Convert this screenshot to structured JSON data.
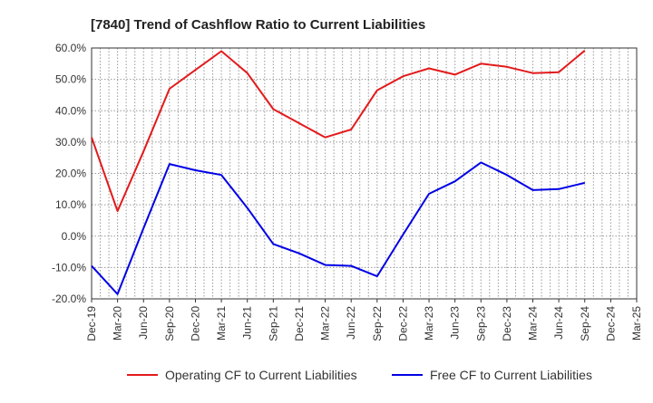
{
  "chart_data": {
    "type": "line",
    "title": "[7840]  Trend of Cashflow Ratio to Current Liabilities",
    "xlabel": "",
    "ylabel": "",
    "ylim": [
      -20,
      60
    ],
    "y_ticks": [
      -20,
      -10,
      0,
      10,
      20,
      30,
      40,
      50,
      60
    ],
    "y_tick_format": "{v}.0%",
    "grid": true,
    "legend_position": "bottom",
    "categories": [
      "Dec-19",
      "Mar-20",
      "Jun-20",
      "Sep-20",
      "Dec-20",
      "Mar-21",
      "Jun-21",
      "Sep-21",
      "Dec-21",
      "Mar-22",
      "Jun-22",
      "Sep-22",
      "Dec-22",
      "Mar-23",
      "Jun-23",
      "Sep-23",
      "Dec-23",
      "Mar-24",
      "Jun-24",
      "Sep-24",
      "Dec-24",
      "Mar-25"
    ],
    "series": [
      {
        "name": "Operating CF to Current Liabilities",
        "color": "#e31a1c",
        "values": [
          31.5,
          8.0,
          27.0,
          47.0,
          53.0,
          59.0,
          52.0,
          40.5,
          36.0,
          31.5,
          34.0,
          46.5,
          51.0,
          53.5,
          51.5,
          55.0,
          54.0,
          52.0,
          52.3,
          59.2,
          null,
          null
        ]
      },
      {
        "name": "Free CF to Current Liabilities",
        "color": "#0000e6",
        "values": [
          -9.5,
          -18.5,
          2.5,
          23.0,
          21.0,
          19.5,
          9.0,
          -2.5,
          -5.5,
          -9.2,
          -9.5,
          -12.8,
          0.5,
          13.5,
          17.5,
          23.5,
          19.5,
          14.7,
          15.0,
          17.0,
          null,
          null
        ]
      }
    ]
  }
}
